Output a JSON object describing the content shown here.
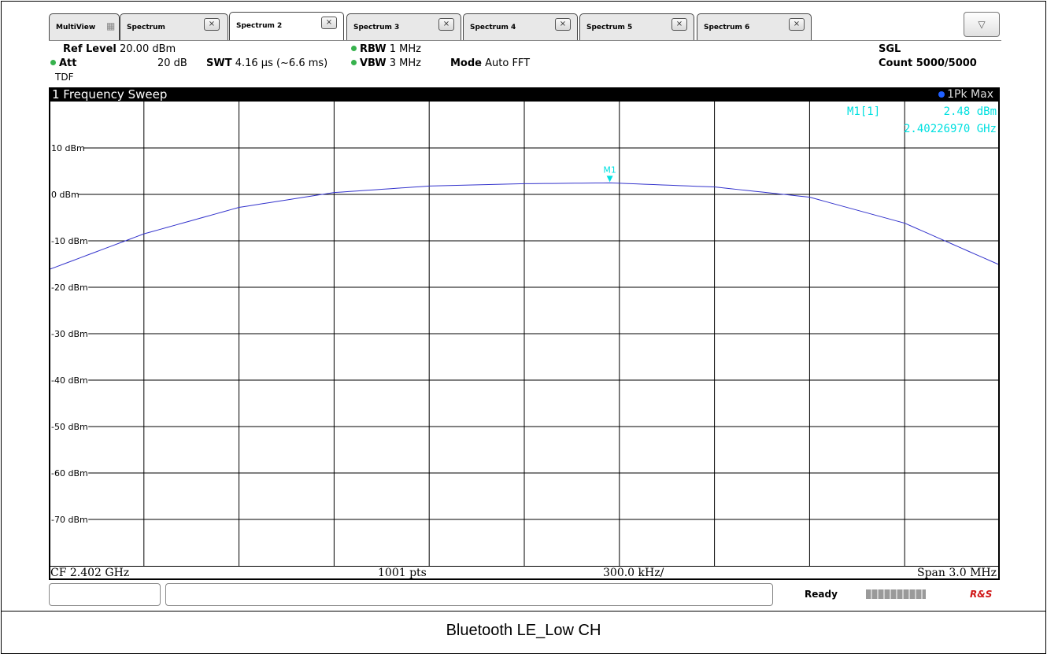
{
  "tabs": [
    {
      "label": "MultiView"
    },
    {
      "label": "Spectrum"
    },
    {
      "label": "Spectrum 2"
    },
    {
      "label": "Spectrum 3"
    },
    {
      "label": "Spectrum 4"
    },
    {
      "label": "Spectrum 5"
    },
    {
      "label": "Spectrum 6"
    }
  ],
  "active_tab": "Spectrum 2",
  "icons": {
    "multiview": "multiview-grid-icon",
    "close": "close-x-icon",
    "dropdown": "triangle-down-icon"
  },
  "settings": {
    "ref_level_label": "Ref Level",
    "ref_level_value": "20.00 dBm",
    "att_label": "Att",
    "att_value": "20 dB",
    "swt_label": "SWT",
    "swt_value": "4.16 µs (~6.6 ms)",
    "tdf": "TDF",
    "rbw_label": "RBW",
    "rbw_value": "1 MHz",
    "vbw_label": "VBW",
    "vbw_value": "3 MHz",
    "mode_label": "Mode",
    "mode_value": "Auto FFT",
    "sgl": "SGL",
    "count": "Count 5000/5000"
  },
  "diagram": {
    "title": "1 Frequency Sweep",
    "trace_label": "1Pk Max",
    "marker_readout_name": "M1[1]",
    "marker_readout_level": "2.48 dBm",
    "marker_readout_freq": "2.40226970 GHz",
    "footer_cf": "CF 2.402 GHz",
    "footer_pts": "1001 pts",
    "footer_div": "300.0 kHz/",
    "footer_span": "Span 3.0 MHz"
  },
  "status": {
    "ready": "Ready",
    "logo": "R&S"
  },
  "caption": "Bluetooth LE_Low CH",
  "colors": {
    "trace": "#3333cc",
    "marker": "#00e0e0",
    "grid": "#000000",
    "dot_green": "#37b24d"
  },
  "chart_data": {
    "type": "line",
    "title": "1 Frequency Sweep",
    "xlabel": "",
    "ylabel": "",
    "y_unit": "dBm",
    "ylim": [
      -80,
      20
    ],
    "y_ticks": [
      10,
      0,
      -10,
      -20,
      -30,
      -40,
      -50,
      -60,
      -70
    ],
    "y_tick_labels": [
      "10 dBm",
      "0 dBm",
      "-10 dBm",
      "-20 dBm",
      "-30 dBm",
      "-40 dBm",
      "-50 dBm",
      "-60 dBm",
      "-70 dBm"
    ],
    "x_unit": "GHz",
    "xlim": [
      2.4005,
      2.4035
    ],
    "grid": true,
    "series": [
      {
        "values": [
          {
            "x": 2.4005,
            "y": -16.2
          },
          {
            "x": 2.4008,
            "y": -8.5
          },
          {
            "x": 2.4011,
            "y": -2.8
          },
          {
            "x": 2.4014,
            "y": 0.4
          },
          {
            "x": 2.4017,
            "y": 1.8
          },
          {
            "x": 2.402,
            "y": 2.3
          },
          {
            "x": 2.40227,
            "y": 2.48
          },
          {
            "x": 2.4026,
            "y": 1.6
          },
          {
            "x": 2.4029,
            "y": -0.6
          },
          {
            "x": 2.4032,
            "y": -6.2
          },
          {
            "x": 2.4035,
            "y": -15.2
          }
        ]
      }
    ],
    "markers": [
      {
        "label": "M1",
        "x": 2.4022697,
        "y": 2.48
      }
    ]
  }
}
